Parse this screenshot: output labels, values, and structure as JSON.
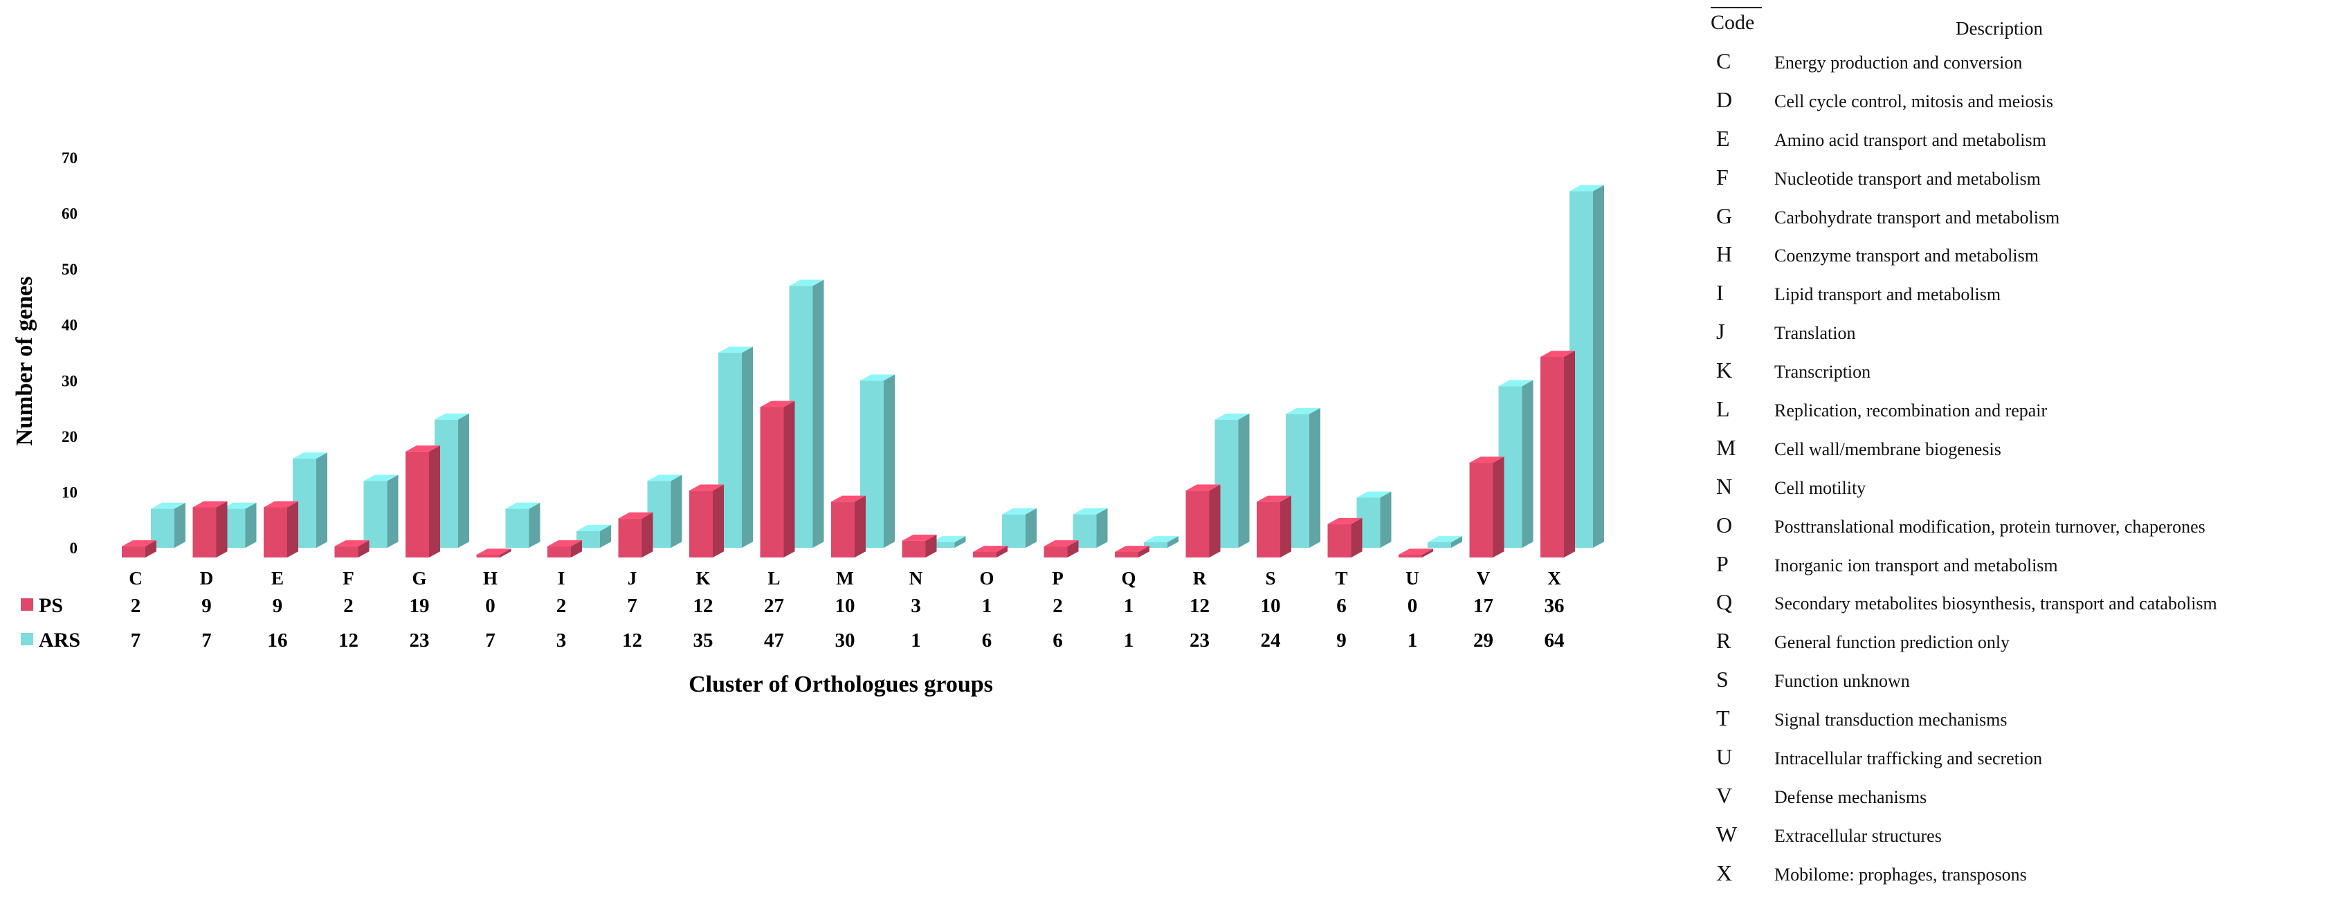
{
  "chart_data": {
    "type": "bar",
    "xlabel": "Cluster of Orthologues groups",
    "ylabel": "Number of genes",
    "ylim": [
      0,
      70
    ],
    "yticks": [
      0,
      10,
      20,
      30,
      40,
      50,
      60,
      70
    ],
    "categories": [
      "C",
      "D",
      "E",
      "F",
      "G",
      "H",
      "I",
      "J",
      "K",
      "L",
      "M",
      "N",
      "O",
      "P",
      "Q",
      "R",
      "S",
      "T",
      "U",
      "V",
      "X"
    ],
    "series": [
      {
        "name": "PS",
        "color": "#e0486a",
        "values": [
          2,
          9,
          9,
          2,
          19,
          0,
          2,
          7,
          12,
          27,
          10,
          3,
          1,
          2,
          1,
          12,
          10,
          6,
          0,
          17,
          36
        ]
      },
      {
        "name": "ARS",
        "color": "#7fdcdc",
        "values": [
          7,
          7,
          16,
          12,
          23,
          7,
          3,
          12,
          35,
          47,
          30,
          1,
          6,
          6,
          1,
          23,
          24,
          9,
          1,
          29,
          64
        ]
      }
    ],
    "legend_placement": "bottom-left, as data table rows",
    "grid": false,
    "style": "3d"
  },
  "cog_table": {
    "code_header": "Code",
    "description_header": "Description",
    "rows": [
      {
        "code": "C",
        "description": "Energy production and conversion"
      },
      {
        "code": "D",
        "description": "Cell cycle control, mitosis and meiosis"
      },
      {
        "code": "E",
        "description": "Amino acid transport and metabolism"
      },
      {
        "code": "F",
        "description": "Nucleotide transport and metabolism"
      },
      {
        "code": "G",
        "description": "Carbohydrate transport and metabolism"
      },
      {
        "code": "H",
        "description": "Coenzyme transport and metabolism"
      },
      {
        "code": "I",
        "description": "Lipid transport and metabolism"
      },
      {
        "code": "J",
        "description": "Translation"
      },
      {
        "code": "K",
        "description": "Transcription"
      },
      {
        "code": "L",
        "description": "Replication, recombination and repair"
      },
      {
        "code": "M",
        "description": "Cell wall/membrane biogenesis"
      },
      {
        "code": "N",
        "description": "Cell motility"
      },
      {
        "code": "O",
        "description": "Posttranslational modification, protein turnover, chaperones"
      },
      {
        "code": "P",
        "description": "Inorganic ion transport and metabolism"
      },
      {
        "code": "Q",
        "description": "Secondary metabolites biosynthesis, transport and catabolism"
      },
      {
        "code": "R",
        "description": "General function prediction only"
      },
      {
        "code": "S",
        "description": "Function unknown"
      },
      {
        "code": "T",
        "description": "Signal transduction mechanisms"
      },
      {
        "code": "U",
        "description": "Intracellular trafficking and secretion"
      },
      {
        "code": "V",
        "description": "Defense mechanisms"
      },
      {
        "code": "W",
        "description": "Extracellular structures"
      },
      {
        "code": "X",
        "description": "Mobilome: prophages, transposons"
      }
    ]
  }
}
